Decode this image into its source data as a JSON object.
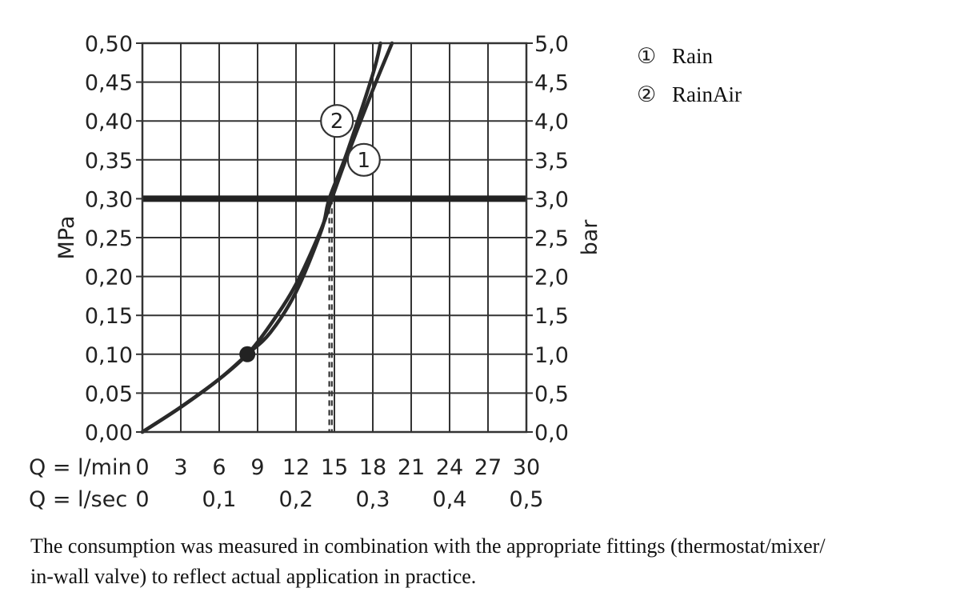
{
  "chart_data": {
    "type": "line",
    "ylabel": "MPa",
    "ylabel_right": "bar",
    "x_axis_label_lmin": "Q = l/min",
    "x_axis_label_lsec": "Q = l/sec",
    "ylim": [
      0,
      0.5
    ],
    "xlim": [
      0,
      30
    ],
    "grid": true,
    "y_ticks": [
      "0,00",
      "0,05",
      "0,10",
      "0,15",
      "0,20",
      "0,25",
      "0,30",
      "0,35",
      "0,40",
      "0,45",
      "0,50"
    ],
    "y_ticks_right": [
      "0,0",
      "0,5",
      "1,0",
      "1,5",
      "2,0",
      "2,5",
      "3,0",
      "3,5",
      "4,0",
      "4,5",
      "5,0"
    ],
    "x_ticks_lmin": [
      "0",
      "3",
      "6",
      "9",
      "12",
      "15",
      "18",
      "21",
      "24",
      "27",
      "30"
    ],
    "x_ticks_lsec": [
      "0",
      "0,1",
      "0,2",
      "0,3",
      "0,4",
      "0,5"
    ],
    "x_ticks_lsec_values": [
      0,
      6,
      12,
      18,
      24,
      30
    ],
    "reference_line_y": 0.3,
    "common_point": {
      "x": 8.2,
      "y": 0.1
    },
    "series": [
      {
        "name": "Rain",
        "marker": "1",
        "x": [
          0,
          3,
          6,
          8.2,
          10,
          12,
          14,
          14.8,
          16,
          18,
          19.5
        ],
        "y": [
          0,
          0.032,
          0.068,
          0.1,
          0.138,
          0.19,
          0.262,
          0.3,
          0.355,
          0.44,
          0.5
        ],
        "marker_at": {
          "x": 17.3,
          "y": 0.35
        }
      },
      {
        "name": "RainAir",
        "marker": "2",
        "x": [
          0,
          3,
          6,
          8.2,
          10,
          12,
          14,
          14.6,
          16,
          18,
          18.6
        ],
        "y": [
          0,
          0.032,
          0.068,
          0.1,
          0.128,
          0.18,
          0.26,
          0.3,
          0.36,
          0.46,
          0.5
        ],
        "marker_at": {
          "x": 15.2,
          "y": 0.4
        }
      }
    ],
    "dashed_drop_lines_x": [
      14.6,
      14.8
    ]
  },
  "legend": [
    {
      "symbol": "①",
      "name": "Rain"
    },
    {
      "symbol": "②",
      "name": "RainAir"
    }
  ],
  "note": {
    "line1": "The consumption was measured in combination with the appropriate fittings (thermostat/mixer/",
    "line2": "in-wall valve) to reflect actual application in practice."
  }
}
